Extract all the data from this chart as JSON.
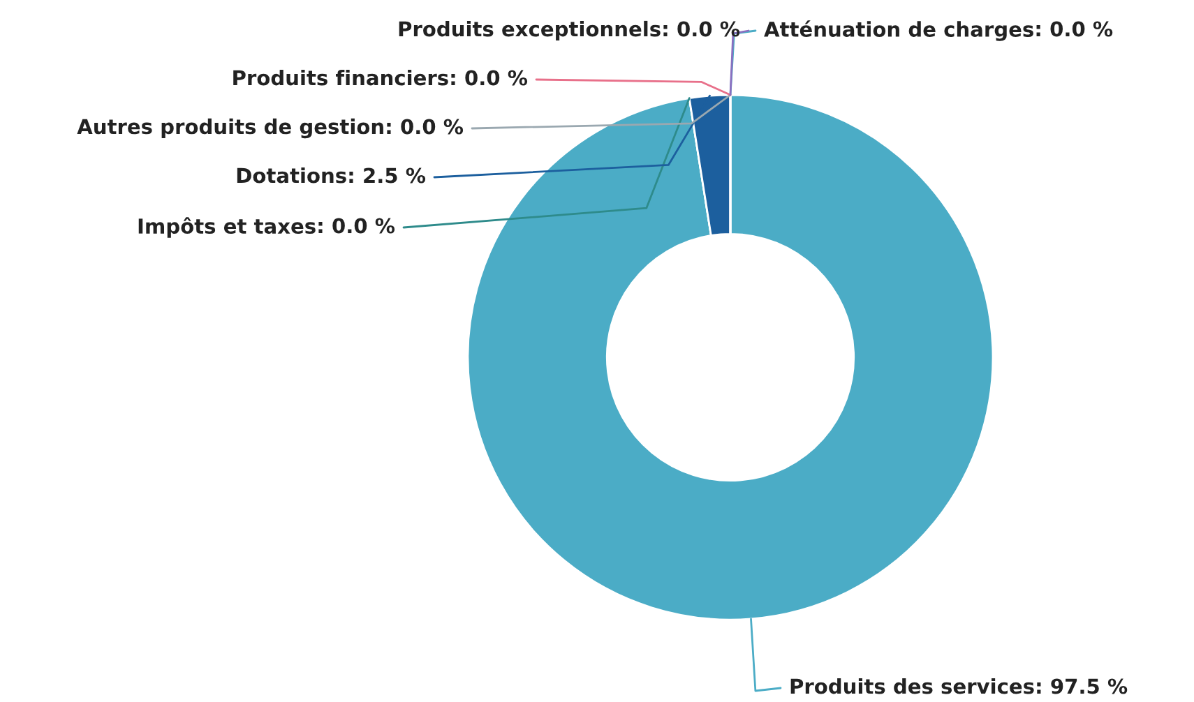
{
  "chart_data": {
    "type": "donut",
    "categories": [
      "Atténuation de charges",
      "Produits des services",
      "Impôts et taxes",
      "Dotations",
      "Autres produits de gestion",
      "Produits financiers",
      "Produits exceptionnels"
    ],
    "values": [
      0.0,
      97.5,
      0.0,
      2.5,
      0.0,
      0.0,
      0.0
    ],
    "colors": [
      "#4bacc6",
      "#4bacc6",
      "#2e8b8b",
      "#1c5f9e",
      "#9aa8b0",
      "#e8708a",
      "#8a6fc0"
    ],
    "value_labels": [
      ": 0.0 %",
      ": 97.5 %",
      ": 0.0 %",
      ": 2.5 %",
      ": 0.0 %",
      ": 0.0 %",
      ": 0.0 %"
    ],
    "legend": false
  }
}
